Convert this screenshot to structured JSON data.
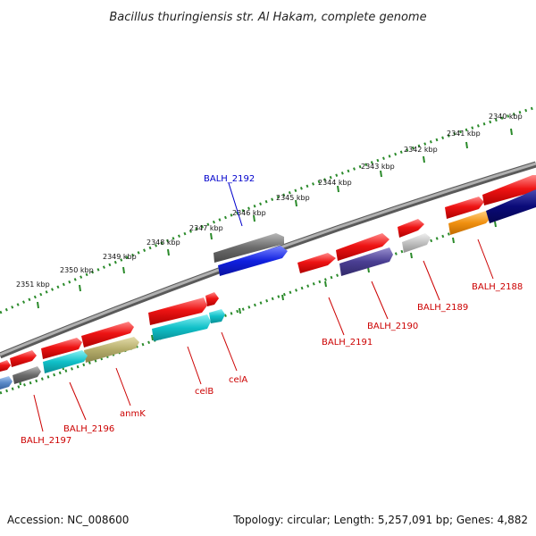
{
  "title": "Bacillus thuringiensis str. Al Hakam, complete genome",
  "footer": {
    "accession": "Accession: NC_008600",
    "summary": "Topology: circular; Length: 5,257,091 bp; Genes: 4,882"
  },
  "scale_ticks": [
    "2340 kbp",
    "2341 kbp",
    "2342 kbp",
    "2343 kbp",
    "2344 kbp",
    "2345 kbp",
    "2346 kbp",
    "2347 kbp",
    "2348 kbp",
    "2349 kbp",
    "2350 kbp",
    "2351 kbp"
  ],
  "gene_labels": {
    "balh_2192": "BALH_2192",
    "balh_2188": "BALH_2188",
    "balh_2189": "BALH_2189",
    "balh_2190": "BALH_2190",
    "balh_2191": "BALH_2191",
    "cela": "celA",
    "celb": "celB",
    "anmk": "anmK",
    "balh_2196": "BALH_2196",
    "balh_2197": "BALH_2197"
  },
  "colors": {
    "cds": "#e81010",
    "label_red": "#cc0000",
    "label_blue": "#0000cc",
    "backbone": "#8a8a8a",
    "tick_dots": "#2a8a2a",
    "gray": "#6a6a6a",
    "blue": "#1020e0",
    "navy": "#0a0a78",
    "purple": "#4a3e92",
    "orange": "#f09010",
    "cyan": "#10c0c8",
    "olive": "#b4ac6a",
    "light_gray": "#c0c0c0",
    "steel": "#5a8ac8"
  }
}
